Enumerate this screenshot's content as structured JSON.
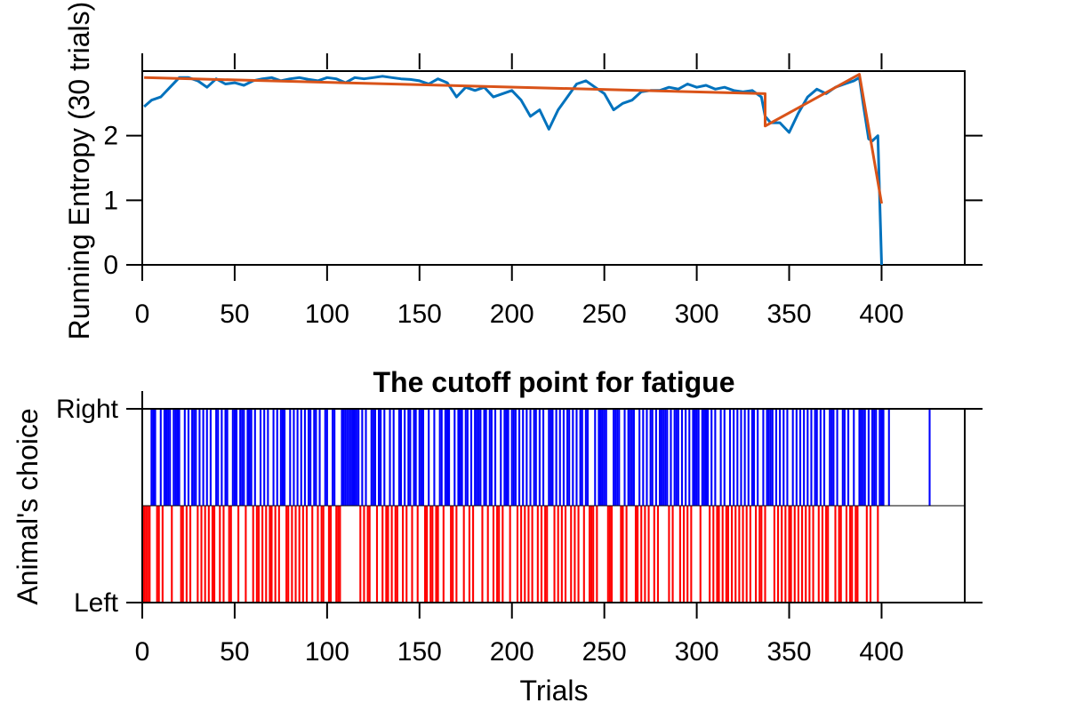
{
  "colors": {
    "entropy_line": "#0072BD",
    "fit_line": "#D95319",
    "right_choice": "#0000FF",
    "left_choice": "#FF0000",
    "axes": "#000000"
  },
  "chart_data": [
    {
      "type": "line",
      "title": "",
      "xlabel": "",
      "ylabel": "Running Entropy (30 trials)",
      "xlim": [
        0,
        445
      ],
      "ylim": [
        0,
        3
      ],
      "xticks": [
        0,
        50,
        100,
        150,
        200,
        250,
        300,
        350,
        400
      ],
      "xtick_labels": [
        "0",
        "50",
        "100",
        "150",
        "200",
        "250",
        "300",
        "350",
        "400"
      ],
      "yticks": [
        0,
        1,
        2
      ],
      "ytick_labels": [
        "0",
        "1",
        "2"
      ],
      "grid": false,
      "series": [
        {
          "x": [
            1,
            5,
            10,
            15,
            20,
            25,
            30,
            35,
            40,
            45,
            50,
            55,
            60,
            65,
            70,
            75,
            80,
            85,
            90,
            95,
            100,
            105,
            110,
            115,
            120,
            125,
            130,
            135,
            140,
            145,
            150,
            155,
            160,
            165,
            170,
            175,
            180,
            185,
            190,
            195,
            200,
            205,
            210,
            215,
            220,
            225,
            230,
            235,
            240,
            245,
            250,
            255,
            260,
            265,
            270,
            275,
            280,
            285,
            290,
            295,
            300,
            305,
            310,
            315,
            320,
            325,
            330,
            335,
            337,
            340,
            345,
            350,
            355,
            360,
            365,
            370,
            375,
            380,
            385,
            388,
            390,
            393,
            395,
            398,
            400
          ],
          "y": [
            2.45,
            2.55,
            2.6,
            2.75,
            2.9,
            2.9,
            2.85,
            2.75,
            2.88,
            2.8,
            2.82,
            2.78,
            2.85,
            2.88,
            2.9,
            2.85,
            2.88,
            2.9,
            2.87,
            2.85,
            2.9,
            2.88,
            2.82,
            2.9,
            2.88,
            2.9,
            2.92,
            2.9,
            2.88,
            2.87,
            2.85,
            2.8,
            2.88,
            2.82,
            2.6,
            2.75,
            2.7,
            2.75,
            2.6,
            2.65,
            2.7,
            2.55,
            2.3,
            2.4,
            2.1,
            2.4,
            2.6,
            2.8,
            2.85,
            2.75,
            2.65,
            2.4,
            2.5,
            2.55,
            2.68,
            2.7,
            2.7,
            2.75,
            2.72,
            2.8,
            2.75,
            2.78,
            2.72,
            2.75,
            2.7,
            2.68,
            2.7,
            2.6,
            2.3,
            2.2,
            2.2,
            2.05,
            2.35,
            2.6,
            2.72,
            2.65,
            2.75,
            2.8,
            2.85,
            2.9,
            2.5,
            1.95,
            1.92,
            2.0,
            0.0
          ]
        },
        {
          "x": [
            1,
            337,
            337,
            388,
            388,
            400
          ],
          "y": [
            2.9,
            2.65,
            2.15,
            2.95,
            2.95,
            0.95
          ]
        }
      ]
    },
    {
      "type": "bar",
      "title": "The cutoff point for fatigue",
      "xlabel": "Trials",
      "ylabel": "Animal's choice",
      "xlim": [
        0,
        445
      ],
      "xticks": [
        0,
        50,
        100,
        150,
        200,
        250,
        300,
        350,
        400
      ],
      "xtick_labels": [
        "0",
        "50",
        "100",
        "150",
        "200",
        "250",
        "300",
        "350",
        "400"
      ],
      "ytick_labels": [
        "Left",
        "Right"
      ],
      "grid": false,
      "series": [
        {
          "name": "Right",
          "x": [
            5,
            6,
            7,
            10,
            12,
            13,
            14,
            15,
            17,
            18,
            19,
            20,
            23,
            25,
            27,
            28,
            29,
            31,
            33,
            35,
            37,
            40,
            41,
            43,
            45,
            46,
            49,
            50,
            51,
            53,
            54,
            55,
            57,
            58,
            59,
            61,
            64,
            66,
            68,
            71,
            73,
            75,
            76,
            77,
            80,
            82,
            84,
            86,
            88,
            90,
            91,
            93,
            94,
            96,
            99,
            100,
            103,
            104,
            108,
            109,
            110,
            111,
            112,
            113,
            114,
            115,
            116,
            117,
            119,
            121,
            124,
            125,
            126,
            128,
            129,
            131,
            134,
            136,
            139,
            140,
            142,
            144,
            145,
            147,
            148,
            150,
            151,
            152,
            155,
            158,
            161,
            162,
            164,
            165,
            166,
            169,
            171,
            172,
            173,
            175,
            176,
            178,
            180,
            181,
            182,
            183,
            185,
            186,
            188,
            189,
            191,
            194,
            196,
            197,
            198,
            200,
            201,
            202,
            204,
            206,
            208,
            210,
            212,
            213,
            215,
            217,
            220,
            221,
            222,
            224,
            226,
            228,
            230,
            231,
            233,
            235,
            237,
            238,
            240,
            241,
            245,
            247,
            248,
            249,
            250,
            251,
            255,
            256,
            257,
            258,
            261,
            263,
            264,
            265,
            266,
            269,
            271,
            273,
            275,
            276,
            278,
            280,
            281,
            282,
            283,
            284,
            286,
            288,
            289,
            290,
            292,
            294,
            296,
            298,
            299,
            300,
            301,
            303,
            304,
            305,
            306,
            308,
            310,
            313,
            315,
            318,
            320,
            322,
            324,
            326,
            328,
            330,
            331,
            333,
            336,
            338,
            339,
            340,
            341,
            343,
            345,
            347,
            349,
            352,
            354,
            356,
            358,
            360,
            362,
            364,
            365,
            367,
            369,
            372,
            373,
            374,
            376,
            379,
            380,
            382,
            385,
            388,
            389,
            390,
            391,
            393,
            395,
            396,
            397,
            399,
            400,
            401,
            404,
            426
          ]
        },
        {
          "name": "Left",
          "x": [
            1,
            2,
            3,
            4,
            8,
            9,
            11,
            16,
            21,
            22,
            24,
            26,
            30,
            32,
            34,
            36,
            38,
            39,
            42,
            44,
            47,
            48,
            52,
            56,
            60,
            62,
            63,
            65,
            67,
            69,
            70,
            72,
            74,
            78,
            79,
            81,
            83,
            85,
            87,
            89,
            92,
            95,
            97,
            98,
            101,
            102,
            105,
            106,
            107,
            118,
            120,
            122,
            123,
            127,
            130,
            132,
            133,
            135,
            137,
            138,
            141,
            143,
            146,
            149,
            153,
            154,
            156,
            157,
            159,
            160,
            163,
            167,
            168,
            170,
            174,
            177,
            179,
            184,
            187,
            190,
            192,
            193,
            195,
            199,
            203,
            205,
            207,
            209,
            211,
            214,
            216,
            218,
            219,
            223,
            225,
            227,
            229,
            232,
            234,
            236,
            239,
            242,
            243,
            244,
            246,
            252,
            253,
            254,
            259,
            260,
            262,
            267,
            268,
            270,
            272,
            274,
            277,
            279,
            285,
            287,
            291,
            293,
            295,
            297,
            302,
            307,
            309,
            311,
            312,
            314,
            316,
            317,
            319,
            321,
            323,
            325,
            327,
            329,
            332,
            334,
            335,
            337,
            342,
            344,
            346,
            348,
            350,
            351,
            353,
            355,
            357,
            359,
            361,
            363,
            366,
            368,
            370,
            371,
            375,
            377,
            378,
            381,
            383,
            384,
            386,
            387,
            392,
            394,
            398
          ]
        }
      ]
    }
  ]
}
